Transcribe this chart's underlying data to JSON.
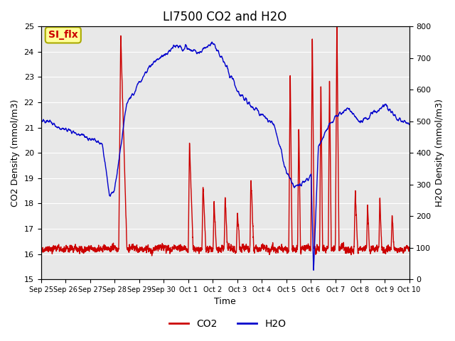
{
  "title": "LI7500 CO2 and H2O",
  "xlabel": "Time",
  "ylabel_left": "CO2 Density (mmol/m3)",
  "ylabel_right": "H2O Density (mmol/m3)",
  "ylim_left": [
    15.0,
    25.0
  ],
  "ylim_right": [
    0,
    800
  ],
  "yticks_left": [
    15.0,
    16.0,
    17.0,
    18.0,
    19.0,
    20.0,
    21.0,
    22.0,
    23.0,
    24.0,
    25.0
  ],
  "yticks_right": [
    0,
    100,
    200,
    300,
    400,
    500,
    600,
    700,
    800
  ],
  "xtick_labels": [
    "Sep 25",
    "Sep 26",
    "Sep 27",
    "Sep 28",
    "Sep 29",
    "Sep 30",
    "Oct 1",
    "Oct 2",
    "Oct 3",
    "Oct 4",
    "Oct 5",
    "Oct 6",
    "Oct 7",
    "Oct 8",
    "Oct 9",
    "Oct 10"
  ],
  "co2_color": "#cc0000",
  "h2o_color": "#0000cc",
  "bg_color": "#e8e8e8",
  "annotation_text": "SI_flx",
  "annotation_color": "#cc0000",
  "annotation_bg": "#ffff99",
  "legend_labels": [
    "CO2",
    "H2O"
  ],
  "line_width": 1.0,
  "grid_color": "white",
  "title_fontsize": 12
}
